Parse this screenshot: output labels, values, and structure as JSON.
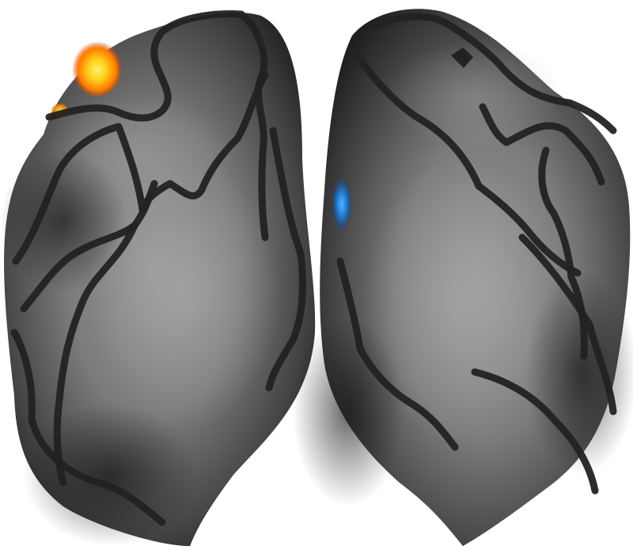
{
  "colors": {
    "background": "#ffffff",
    "surface_light": "#8a8a8a",
    "surface_mid": "#5f5f5f",
    "surface_dark": "#262626",
    "outline": "#222222",
    "activation_positive_core": "#ffd21a",
    "activation_positive_edge": "#d23a00",
    "activation_negative_core": "#1e7ad1",
    "activation_negative_edge": "#0c3f7a"
  },
  "render": {
    "left_hemisphere": {
      "activation": "positive"
    },
    "right_hemisphere": {
      "activation": "negative"
    }
  }
}
